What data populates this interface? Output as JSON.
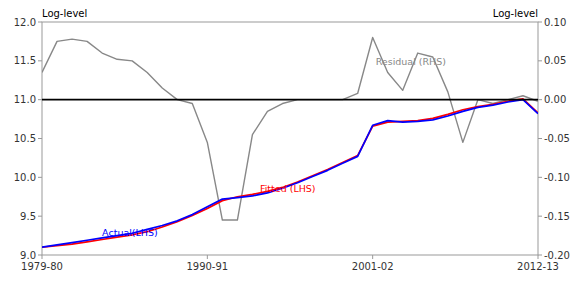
{
  "chart_data": {
    "type": "line",
    "y_label": "Log-level",
    "y2_label": "Log-level",
    "x": [
      1979,
      1980,
      1981,
      1982,
      1983,
      1984,
      1985,
      1986,
      1987,
      1988,
      1989,
      1990,
      1991,
      1992,
      1993,
      1994,
      1995,
      1996,
      1997,
      1998,
      1999,
      2000,
      2001,
      2002,
      2003,
      2004,
      2005,
      2006,
      2007,
      2008,
      2009,
      2010,
      2011,
      2012
    ],
    "xlim": [
      1979,
      2012
    ],
    "xticks": [
      {
        "value": 1979,
        "label": "1979-80"
      },
      {
        "value": 1990,
        "label": "1990-91"
      },
      {
        "value": 2001,
        "label": "2001-02"
      },
      {
        "value": 2012,
        "label": "2012-13"
      }
    ],
    "ylim": [
      9.0,
      12.0
    ],
    "yticks": [
      {
        "value": 9.0,
        "label": "9.0"
      },
      9.5,
      {
        "value": 10.0,
        "label": "10.0"
      },
      10.5,
      {
        "value": 11.0,
        "label": "11.0"
      },
      11.5,
      {
        "value": 12.0,
        "label": "12.0"
      }
    ],
    "y2lim": [
      -0.2,
      0.1
    ],
    "y2ticks": [
      {
        "value": -0.2,
        "label": "-0.20"
      },
      -0.15,
      {
        "value": -0.1,
        "label": "-0.10"
      },
      -0.05,
      {
        "value": 0.0,
        "label": "0.00"
      },
      0.05,
      {
        "value": 0.1,
        "label": "0.10"
      }
    ],
    "grid": false,
    "series": [
      {
        "name": "Fitted (LHS)",
        "color": "#FF0000",
        "values": [
          9.1,
          9.12,
          9.14,
          9.17,
          9.2,
          9.23,
          9.26,
          9.3,
          9.36,
          9.43,
          9.51,
          9.6,
          9.7,
          9.75,
          9.78,
          9.82,
          9.87,
          9.94,
          10.02,
          10.1,
          10.19,
          10.28,
          10.66,
          10.71,
          10.72,
          10.73,
          10.76,
          10.81,
          10.87,
          10.91,
          10.94,
          10.98,
          11.01,
          10.83
        ]
      },
      {
        "name": "Actual(LHS)",
        "color": "#0000FF",
        "values": [
          9.1,
          9.13,
          9.16,
          9.19,
          9.22,
          9.25,
          9.28,
          9.33,
          9.38,
          9.44,
          9.52,
          9.62,
          9.72,
          9.74,
          9.76,
          9.8,
          9.86,
          9.93,
          10.01,
          10.09,
          10.18,
          10.27,
          10.67,
          10.73,
          10.71,
          10.72,
          10.74,
          10.79,
          10.85,
          10.9,
          10.93,
          10.97,
          11.0,
          10.82
        ]
      },
      {
        "name": "Residual (RHS)",
        "color": "#888888",
        "axis": "y2",
        "values": [
          0.035,
          0.075,
          0.078,
          0.075,
          0.06,
          0.052,
          0.05,
          0.035,
          0.015,
          0.0,
          -0.005,
          -0.055,
          -0.155,
          -0.155,
          -0.045,
          -0.015,
          -0.005,
          0.0,
          0.0,
          0.0,
          0.0,
          0.008,
          0.08,
          0.035,
          0.012,
          0.06,
          0.055,
          0.01,
          -0.055,
          0.0,
          -0.005,
          0.0,
          0.005,
          -0.002
        ]
      }
    ],
    "hline": {
      "value": 11.0,
      "color": "#000000"
    },
    "annotations": [
      {
        "text": "Actual(LHS)",
        "x": 1983.0,
        "y": 9.22,
        "color": "#0000FF"
      },
      {
        "text": "Fitted (LHS)",
        "x": 1993.5,
        "y": 9.78,
        "color": "#FF0000"
      },
      {
        "text": "Residual (RHS)",
        "x": 2001.2,
        "y": 0.042,
        "color": "#888888",
        "axis": "y2"
      }
    ]
  }
}
